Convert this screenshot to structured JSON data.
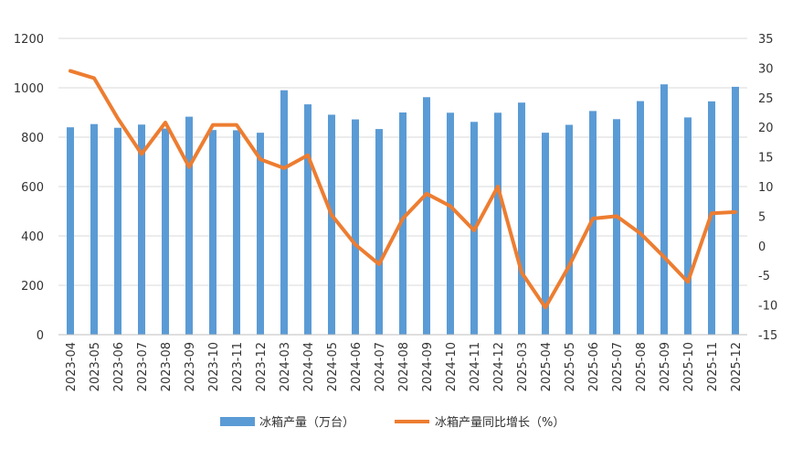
{
  "chart_data": {
    "type": "bar+line",
    "categories": [
      "2023-04",
      "2023-05",
      "2023-06",
      "2023-07",
      "2023-08",
      "2023-09",
      "2023-10",
      "2023-11",
      "2023-12",
      "2024-03",
      "2024-04",
      "2024-05",
      "2024-06",
      "2024-07",
      "2024-08",
      "2024-09",
      "2024-10",
      "2024-11",
      "2024-12",
      "2025-03",
      "2025-04",
      "2025-05",
      "2025-06",
      "2025-07",
      "2025-08",
      "2025-09",
      "2025-10",
      "2025-11",
      "2025-12"
    ],
    "series": [
      {
        "name": "冰箱产量（万台）",
        "type": "bar",
        "axis": "left",
        "color": "#5b9bd5",
        "values": [
          840,
          853,
          838,
          851,
          835,
          883,
          829,
          828,
          818,
          990,
          933,
          891,
          872,
          833,
          900,
          962,
          899,
          862,
          899,
          940,
          818,
          850,
          906,
          873,
          946,
          1014,
          880,
          945,
          1004
        ]
      },
      {
        "name": "冰箱产量同比增长（%）",
        "type": "line",
        "axis": "right",
        "color": "#ed7d31",
        "values": [
          29.5,
          28.3,
          21.5,
          15.5,
          20.8,
          13.3,
          20.4,
          20.4,
          14.6,
          13.1,
          15.3,
          5.2,
          0.2,
          -3.1,
          4.6,
          8.8,
          6.7,
          2.6,
          10.0,
          -4.5,
          -10.4,
          -3.4,
          4.6,
          5.0,
          2.1,
          -1.9,
          -6.1,
          5.5,
          5.7
        ]
      }
    ],
    "y_left": {
      "min": 0,
      "max": 1200,
      "ticks": [
        0,
        200,
        400,
        600,
        800,
        1000,
        1200
      ]
    },
    "y_right": {
      "min": -15,
      "max": 35,
      "ticks": [
        -15,
        -10,
        -5,
        0,
        5,
        10,
        15,
        20,
        25,
        30,
        35
      ]
    },
    "legend_position": "bottom",
    "grid": "horizontal"
  }
}
